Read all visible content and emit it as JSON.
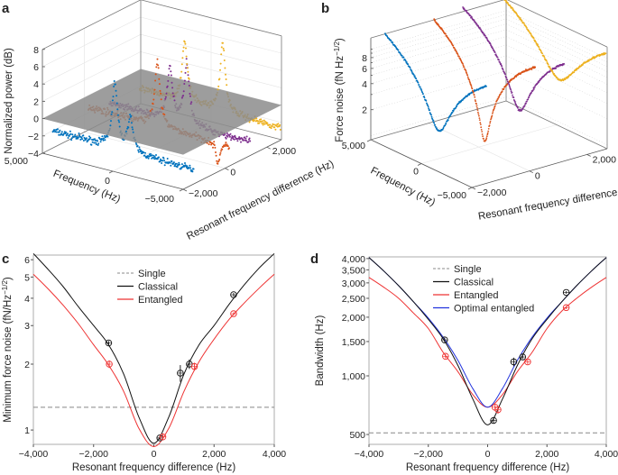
{
  "panels": {
    "a": "a",
    "b": "b",
    "c": "c",
    "d": "d"
  },
  "colors": {
    "series": [
      "#0072BD",
      "#D95319",
      "#7E2F8E",
      "#EDB120"
    ],
    "classical": "#111111",
    "entangled": "#EE3333",
    "optimal": "#2233DD",
    "single": "#888888",
    "plane": "#8c8c8c"
  },
  "chart_data": [
    {
      "id": "a",
      "type": "scatter3d",
      "xlabel": "Frequency (Hz)",
      "ylabel": "Resonant frequency difference (Hz)",
      "zlabel": "Normalized power (dB)",
      "xlim": [
        5000,
        -5000
      ],
      "ylim": [
        -2000,
        2700
      ],
      "zlim": [
        -4,
        8
      ],
      "xticks": [
        "5,000",
        "0",
        "−5,000"
      ],
      "yticks": [
        "−2,000",
        "0",
        "2,000"
      ],
      "zticks": [
        "8",
        "6",
        "4",
        "2",
        "0",
        "−2",
        "−4"
      ],
      "plane_at_db": 0,
      "series": [
        {
          "resonant_difference": -1500,
          "baseline_db": -2.2,
          "peaks": [
            {
              "f": 600,
              "db": 5.3
            },
            {
              "f": -500,
              "db": 1.8
            }
          ]
        },
        {
          "resonant_difference": 200,
          "baseline_db": -1.5,
          "peaks": [
            {
              "f": 100,
              "db": 6
            },
            {
              "f": -4200,
              "db": -4
            }
          ]
        },
        {
          "resonant_difference": 1200,
          "baseline_db": -2.3,
          "peaks": [
            {
              "f": 700,
              "db": 3.7
            },
            {
              "f": -500,
              "db": 4.8
            }
          ]
        },
        {
          "resonant_difference": 2650,
          "baseline_db": -2.4,
          "peaks": [
            {
              "f": 1800,
              "db": 4.5
            },
            {
              "f": -900,
              "db": 5.6
            }
          ]
        }
      ]
    },
    {
      "id": "b",
      "type": "scatter3d",
      "xlabel": "Frequency (Hz)",
      "ylabel": "Resonant frequency difference (Hz)",
      "zlabel": "Force noise (fN Hz",
      "zlabel_exp": "−1/2",
      "zlabel_end": ")",
      "zscale": "log",
      "xlim": [
        5000,
        -5000
      ],
      "ylim": [
        -2000,
        2700
      ],
      "zlim": [
        0.9,
        13.5
      ],
      "xticks": [
        "5,000",
        "0",
        "−5,000"
      ],
      "yticks": [
        "−2,000",
        "0",
        "2,000"
      ],
      "zticks": [
        "8",
        "6",
        "4",
        "2"
      ],
      "series": [
        {
          "resonant_difference": -1500,
          "min_noise": 2.0,
          "min_f": -300,
          "width_hz": 800
        },
        {
          "resonant_difference": 200,
          "min_noise": 1.0,
          "min_f": 0,
          "width_hz": 370
        },
        {
          "resonant_difference": 1200,
          "min_noise": 2.0,
          "min_f": -600,
          "width_hz": 750
        },
        {
          "resonant_difference": 2650,
          "min_noise": 3.2,
          "min_f": -400,
          "width_hz": 1330
        }
      ]
    },
    {
      "id": "c",
      "type": "line",
      "xlabel": "Resonant frequency difference (Hz)",
      "ylabel": "Minimum force noise (fN/Hz",
      "ylabel_exp": "−1/2",
      "ylabel_end": ")",
      "yscale": "log",
      "xlim": [
        -4000,
        4000
      ],
      "ylim": [
        0.86,
        6.3
      ],
      "xticks": [
        {
          "v": -4000,
          "label": "−4,000"
        },
        {
          "v": -2000,
          "label": "−2,000"
        },
        {
          "v": 0,
          "label": "0"
        },
        {
          "v": 2000,
          "label": "2,000"
        },
        {
          "v": 4000,
          "label": "4,000"
        }
      ],
      "yticks": [
        {
          "v": 1,
          "label": "1"
        },
        {
          "v": 2,
          "label": "2"
        },
        {
          "v": 3,
          "label": "3"
        },
        {
          "v": 4,
          "label": "4"
        },
        {
          "v": 5,
          "label": "5"
        },
        {
          "v": 6,
          "label": "6"
        }
      ],
      "legend": [
        "Single",
        "Classical",
        "Entangled"
      ],
      "single": 1.27,
      "curves": {
        "classical": {
          "x": [
            -4000,
            -3500,
            -3000,
            -2500,
            -2000,
            -1500,
            -1000,
            -500,
            0,
            500,
            1000,
            1500,
            2000,
            2500,
            3000,
            3500,
            4000
          ],
          "y": [
            6.4,
            5.4,
            4.5,
            3.65,
            3.0,
            2.45,
            1.8,
            1.15,
            0.87,
            1.15,
            1.8,
            2.45,
            3.0,
            3.75,
            4.6,
            5.5,
            6.4
          ]
        },
        "entangled": {
          "x": [
            -4000,
            -3500,
            -3000,
            -2500,
            -2000,
            -1500,
            -1000,
            -500,
            0,
            500,
            1000,
            1500,
            2000,
            2500,
            3000,
            3500,
            4000
          ],
          "y": [
            5.15,
            4.4,
            3.7,
            3.05,
            2.45,
            1.98,
            1.5,
            1.02,
            0.84,
            1.02,
            1.5,
            2.05,
            2.6,
            3.2,
            3.8,
            4.45,
            5.15
          ]
        }
      },
      "points": {
        "classical": [
          {
            "x": -1500,
            "y": 2.5,
            "err": 0.05
          },
          {
            "x": 200,
            "y": 0.92,
            "err": 0.02
          },
          {
            "x": 880,
            "y": 1.82,
            "err": 0.16
          },
          {
            "x": 1180,
            "y": 2.0,
            "err": 0.1
          },
          {
            "x": 2650,
            "y": 4.15,
            "err": 0.08
          }
        ],
        "entangled": [
          {
            "x": -1480,
            "y": 2.0,
            "err": 0.08
          },
          {
            "x": 300,
            "y": 0.93,
            "err": 0.03
          },
          {
            "x": 1350,
            "y": 1.95,
            "err": 0.08
          },
          {
            "x": 2650,
            "y": 3.4,
            "err": 0.05
          }
        ]
      }
    },
    {
      "id": "d",
      "type": "line",
      "xlabel": "Resonant frequency difference (Hz)",
      "ylabel": "Bandwidth (Hz)",
      "yscale": "log",
      "xlim": [
        -4000,
        4000
      ],
      "ylim": [
        445,
        4080
      ],
      "xticks": [
        {
          "v": -4000,
          "label": "−4,000"
        },
        {
          "v": -2000,
          "label": "−2,000"
        },
        {
          "v": 0,
          "label": "0"
        },
        {
          "v": 2000,
          "label": "2,000"
        },
        {
          "v": 4000,
          "label": "4,000"
        }
      ],
      "yticks": [
        {
          "v": 500,
          "label": "500"
        },
        {
          "v": 1000,
          "label": "1,000"
        },
        {
          "v": 1500,
          "label": "1,500"
        },
        {
          "v": 2000,
          "label": "2,000"
        },
        {
          "v": 2500,
          "label": "2,500"
        },
        {
          "v": 3000,
          "label": "3,000"
        },
        {
          "v": 3500,
          "label": "3,500"
        },
        {
          "v": 4000,
          "label": "4,000"
        }
      ],
      "legend": [
        "Single",
        "Classical",
        "Entangled",
        "Optimal entangled"
      ],
      "single": 510,
      "curves": {
        "classical": {
          "x": [
            -4000,
            -3500,
            -3000,
            -2500,
            -2000,
            -1500,
            -1000,
            -500,
            0,
            500,
            1000,
            1500,
            2000,
            2500,
            3000,
            3500,
            4000
          ],
          "y": [
            4050,
            3450,
            2900,
            2400,
            1950,
            1550,
            1130,
            760,
            560,
            760,
            1130,
            1550,
            1950,
            2400,
            2900,
            3450,
            4050
          ]
        },
        "entangled": {
          "x": [
            -4000,
            -3500,
            -3000,
            -2500,
            -2000,
            -1500,
            -1000,
            -500,
            0,
            500,
            1000,
            1500,
            2000,
            2500,
            3000,
            3500,
            4000
          ],
          "y": [
            3200,
            2850,
            2500,
            2100,
            1750,
            1320,
            1050,
            800,
            690,
            800,
            1050,
            1320,
            1750,
            2150,
            2500,
            2850,
            3200
          ]
        },
        "optimal_entangled": {
          "x": [
            -4000,
            -3500,
            -3000,
            -2500,
            -2000,
            -1500,
            -1000,
            -500,
            0,
            500,
            1000,
            1500,
            2000,
            2500,
            3000,
            3500,
            4000
          ],
          "y": [
            4050,
            3450,
            2900,
            2400,
            1980,
            1580,
            1200,
            860,
            690,
            860,
            1200,
            1580,
            1980,
            2400,
            2900,
            3450,
            4050
          ]
        }
      },
      "points": {
        "classical": [
          {
            "x": -1450,
            "y": 1530,
            "err": 40
          },
          {
            "x": 200,
            "y": 590,
            "err": 20
          },
          {
            "x": 880,
            "y": 1180,
            "err": 60
          },
          {
            "x": 1180,
            "y": 1250,
            "err": 30
          },
          {
            "x": 2650,
            "y": 2680,
            "err": 40
          }
        ],
        "entangled": [
          {
            "x": -1420,
            "y": 1260,
            "err": 30
          },
          {
            "x": 250,
            "y": 690,
            "err": 20
          },
          {
            "x": 350,
            "y": 670,
            "err": 30
          },
          {
            "x": 1350,
            "y": 1180,
            "err": 30
          },
          {
            "x": 2650,
            "y": 2240,
            "err": 40
          }
        ]
      }
    }
  ]
}
